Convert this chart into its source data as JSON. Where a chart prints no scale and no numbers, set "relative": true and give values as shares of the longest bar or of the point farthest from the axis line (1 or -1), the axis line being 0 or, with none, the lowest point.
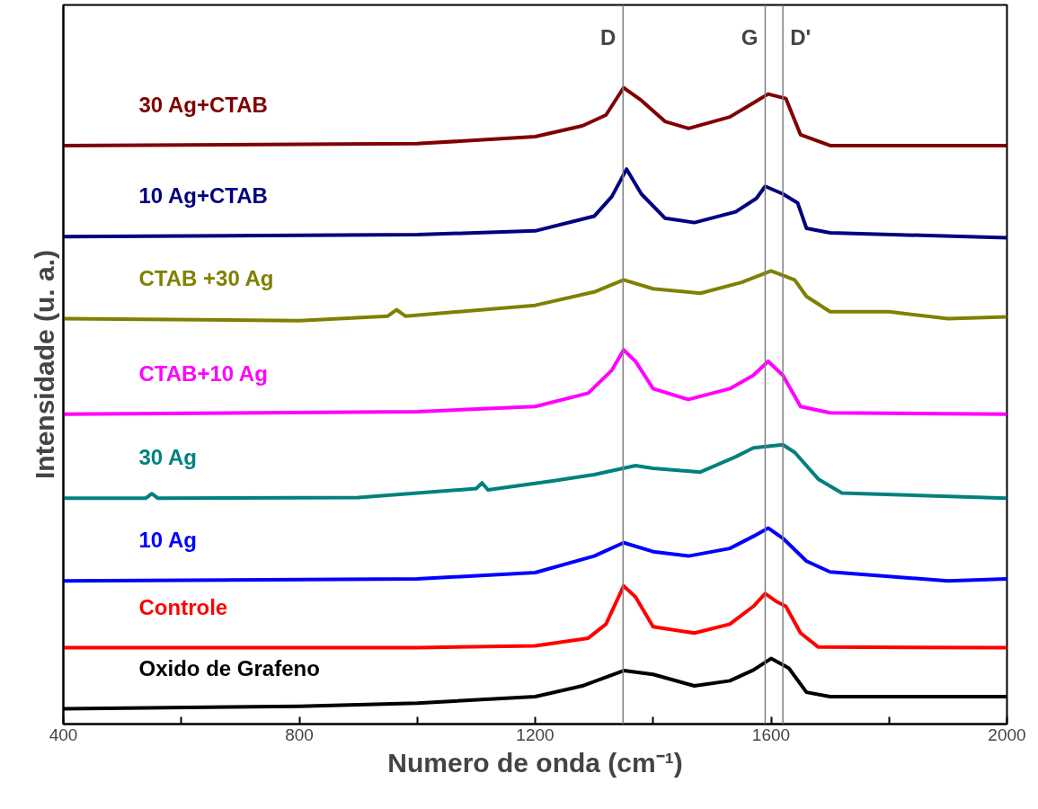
{
  "chart_data": {
    "type": "line",
    "xlabel": "Numero de onda (cm⁻¹)",
    "ylabel": "Intensidade (u. a.)",
    "relative": true,
    "grid": false,
    "marker": "none",
    "line_style": "solid",
    "xlim": [
      400,
      2000
    ],
    "xticks": [
      400,
      {
        "value": 600,
        "label": null
      },
      800,
      {
        "value": 1000,
        "label": null
      },
      1200,
      {
        "value": 1400,
        "label": null
      },
      1600,
      {
        "value": 1800,
        "label": null
      },
      2000
    ],
    "ref_lines": [
      {
        "axis": "x",
        "value": 1349,
        "label": "D",
        "color": "#808080"
      },
      {
        "axis": "x",
        "value": 1590,
        "label": "G",
        "color": "#808080"
      },
      {
        "axis": "x",
        "value": 1620,
        "label": "D'",
        "color": "#808080"
      }
    ],
    "series": [
      {
        "name": "Oxido de Grafeno",
        "color": "#000000",
        "x": [
          400,
          800,
          1000,
          1200,
          1280,
          1350,
          1400,
          1470,
          1530,
          1570,
          1600,
          1630,
          1660,
          1700,
          2000
        ],
        "values": [
          0.024,
          0.028,
          0.033,
          0.043,
          0.06,
          0.084,
          0.078,
          0.06,
          0.068,
          0.085,
          0.103,
          0.088,
          0.05,
          0.043,
          0.043
        ]
      },
      {
        "name": "Controle",
        "color": "#ff0000",
        "x": [
          400,
          1000,
          1200,
          1290,
          1320,
          1350,
          1370,
          1400,
          1470,
          1530,
          1570,
          1590,
          1610,
          1625,
          1650,
          1680,
          2000
        ],
        "values": [
          0.12,
          0.12,
          0.123,
          0.135,
          0.157,
          0.217,
          0.2,
          0.153,
          0.143,
          0.157,
          0.185,
          0.205,
          0.192,
          0.185,
          0.143,
          0.121,
          0.12
        ]
      },
      {
        "name": "10 Ag",
        "color": "#0000ff",
        "x": [
          400,
          1000,
          1200,
          1300,
          1350,
          1400,
          1460,
          1530,
          1570,
          1595,
          1620,
          1660,
          1700,
          1900,
          2000
        ],
        "values": [
          0.225,
          0.228,
          0.238,
          0.264,
          0.285,
          0.271,
          0.264,
          0.276,
          0.295,
          0.308,
          0.292,
          0.256,
          0.239,
          0.225,
          0.228
        ]
      },
      {
        "name": "30 Ag",
        "color": "#008080",
        "x": [
          400,
          540,
          550,
          560,
          900,
          1100,
          1110,
          1120,
          1230,
          1300,
          1370,
          1400,
          1480,
          1540,
          1570,
          1620,
          1640,
          1680,
          1720,
          2000
        ],
        "values": [
          0.355,
          0.355,
          0.362,
          0.355,
          0.356,
          0.37,
          0.379,
          0.368,
          0.382,
          0.392,
          0.406,
          0.402,
          0.396,
          0.42,
          0.434,
          0.439,
          0.427,
          0.385,
          0.363,
          0.355
        ]
      },
      {
        "name": "CTAB+10 Ag",
        "color": "#ff00ff",
        "x": [
          400,
          1000,
          1200,
          1290,
          1330,
          1350,
          1370,
          1400,
          1460,
          1530,
          1570,
          1595,
          1620,
          1650,
          1700,
          2000
        ],
        "values": [
          0.487,
          0.491,
          0.499,
          0.52,
          0.556,
          0.588,
          0.57,
          0.527,
          0.51,
          0.527,
          0.548,
          0.57,
          0.548,
          0.499,
          0.489,
          0.487
        ]
      },
      {
        "name": "CTAB +30 Ag",
        "color": "#808000",
        "x": [
          400,
          800,
          950,
          965,
          980,
          1200,
          1300,
          1350,
          1400,
          1480,
          1550,
          1600,
          1640,
          1660,
          1700,
          1800,
          1900,
          2000
        ],
        "values": [
          0.637,
          0.634,
          0.641,
          0.651,
          0.641,
          0.658,
          0.679,
          0.698,
          0.684,
          0.677,
          0.694,
          0.712,
          0.698,
          0.672,
          0.648,
          0.648,
          0.637,
          0.64
        ]
      },
      {
        "name": "10 Ag+CTAB",
        "color": "#000080",
        "x": [
          400,
          1000,
          1200,
          1300,
          1330,
          1355,
          1380,
          1420,
          1470,
          1540,
          1575,
          1590,
          1620,
          1645,
          1660,
          1700,
          2000
        ],
        "values": [
          0.766,
          0.769,
          0.775,
          0.798,
          0.829,
          0.872,
          0.833,
          0.795,
          0.788,
          0.805,
          0.826,
          0.845,
          0.833,
          0.819,
          0.779,
          0.772,
          0.764
        ]
      },
      {
        "name": "30 Ag+CTAB",
        "color": "#800000",
        "x": [
          400,
          1000,
          1200,
          1280,
          1320,
          1350,
          1380,
          1420,
          1460,
          1530,
          1570,
          1595,
          1625,
          1650,
          1700,
          2000
        ],
        "values": [
          0.909,
          0.912,
          0.923,
          0.94,
          0.957,
          1.0,
          0.98,
          0.947,
          0.936,
          0.954,
          0.976,
          0.99,
          0.983,
          0.926,
          0.909,
          0.909
        ]
      }
    ]
  }
}
